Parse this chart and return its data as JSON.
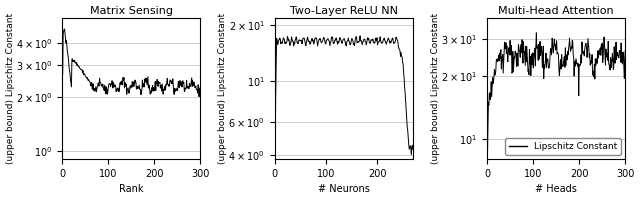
{
  "titles": [
    "Matrix Sensing",
    "Two-Layer ReLU NN",
    "Multi-Head Attention"
  ],
  "xlabels": [
    "Rank",
    "# Neurons",
    "# Heads"
  ],
  "ylabel": "(upper bound) Lipschitz Constant",
  "legend_label": "Lipschitz Constant",
  "plot1": {
    "x_max": 300,
    "ylim": [
      0.9,
      5.5
    ],
    "yticks": [
      1.0,
      2.0,
      3.0,
      4.0
    ],
    "xticks": [
      0,
      100,
      200,
      300
    ],
    "xlim": [
      0,
      300
    ],
    "seed": 42
  },
  "plot2": {
    "x_max": 270,
    "ylim": [
      3.8,
      22.0
    ],
    "yticks": [
      4.0,
      6.0,
      10.0,
      20.0
    ],
    "xticks": [
      0,
      100,
      200
    ],
    "xlim": [
      0,
      270
    ],
    "seed": 7
  },
  "plot3": {
    "x_max": 300,
    "ylim": [
      8.0,
      38.0
    ],
    "yticks": [
      10.0,
      20.0,
      30.0
    ],
    "xticks": [
      0,
      100,
      200,
      300
    ],
    "xlim": [
      0,
      300
    ],
    "seed": 123
  },
  "line_color": "#000000",
  "grid_color": "#bbbbbb",
  "background_color": "#ffffff",
  "title_fontsize": 8,
  "label_fontsize": 7,
  "tick_fontsize": 7,
  "ylabel_fontsize": 6.5
}
